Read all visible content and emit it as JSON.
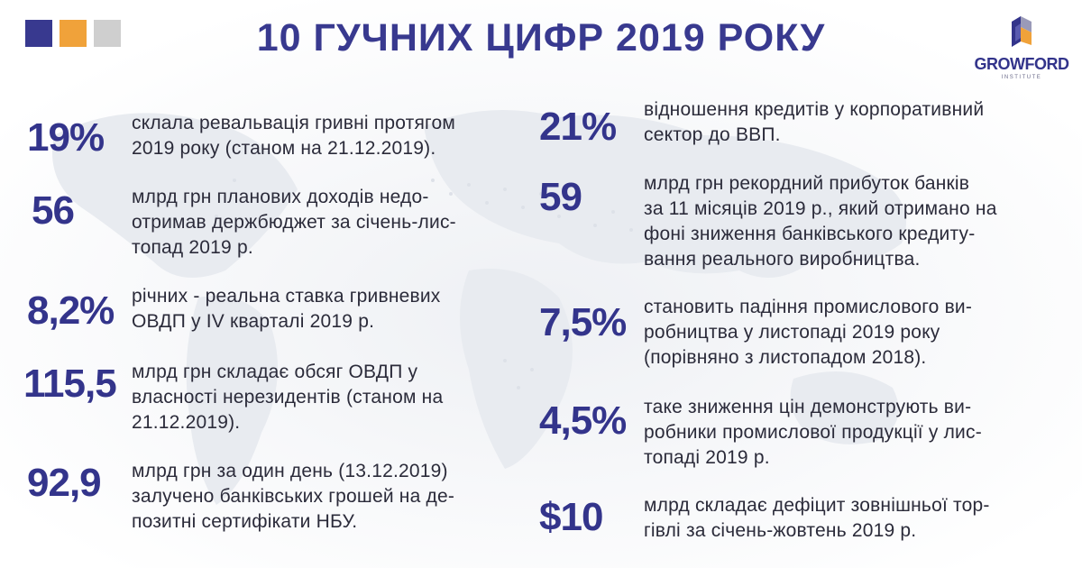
{
  "header": {
    "title": "10 ГУЧНИХ ЦИФР 2019 РОКУ",
    "squares": [
      "#38398f",
      "#f0a23a",
      "#cfcfcf"
    ],
    "accent_color": "#33348b"
  },
  "logo": {
    "name": "GROWFORD",
    "subtitle": "INSTITUTE",
    "icon": "growford-cube-icon"
  },
  "facts_left": [
    {
      "value": "19%",
      "text": "склала ревальвація гривні протягом\n2019 року (станом на 21.12.2019)."
    },
    {
      "value": "56",
      "text": "млрд грн планових доходів недо-\nотримав держбюджет за січень-лис-\nтопад 2019 р."
    },
    {
      "value": "8,2%",
      "text": "річних - реальна ставка гривневих\nОВДП у IV кварталі 2019 р."
    },
    {
      "value": "115,5",
      "text": "млрд грн складає обсяг ОВДП у\nвласності нерезидентів (станом на\n21.12.2019)."
    },
    {
      "value": "92,9",
      "text": "млрд грн за один день (13.12.2019)\nзалучено банківських грошей на де-\nпозитні сертифікати НБУ."
    }
  ],
  "facts_right": [
    {
      "value": "21%",
      "text": "відношення кредитів у корпоративний\nсектор до ВВП."
    },
    {
      "value": "59",
      "text": "млрд грн рекордний прибуток банків\nза 11 місяців 2019 р., який отримано на\nфоні зниження банківського кредиту-\nвання реального виробництва."
    },
    {
      "value": "7,5%",
      "text": "становить падіння промислового ви-\nробництва у листопаді 2019 року\n(порівняно з листопадом 2018)."
    },
    {
      "value": "4,5%",
      "text": "таке зниження цін демонструють ви-\nробники промислової продукції у лис-\nтопаді 2019 р."
    },
    {
      "value": "$10",
      "text": "млрд складає дефіцит зовнішньої тор-\nгівлі за січень-жовтень 2019 р."
    }
  ]
}
